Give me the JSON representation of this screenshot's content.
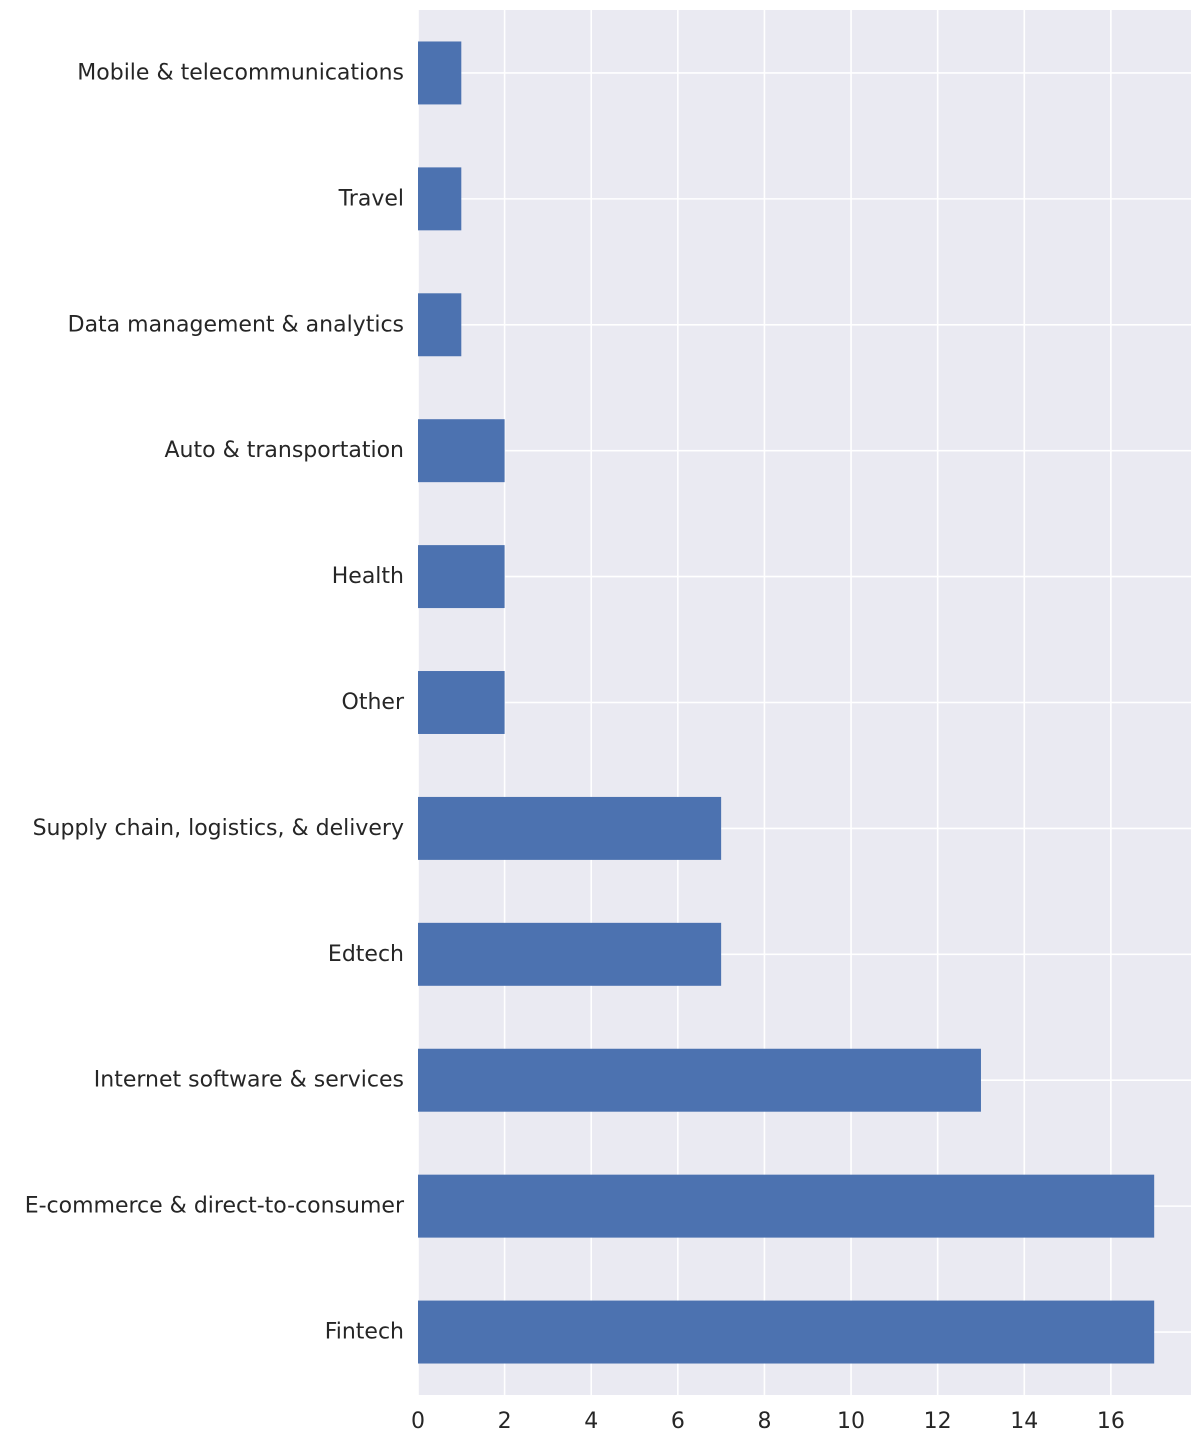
{
  "chart_data": {
    "type": "bar",
    "orientation": "horizontal",
    "categories": [
      "Mobile & telecommunications",
      "Travel",
      "Data management & analytics",
      "Auto & transportation",
      "Health",
      "Other",
      "Supply chain, logistics, & delivery",
      "Edtech",
      "Internet software & services",
      "E-commerce & direct-to-consumer",
      "Fintech"
    ],
    "values": [
      1,
      1,
      1,
      2,
      2,
      2,
      7,
      7,
      13,
      17,
      17
    ],
    "xticks": [
      0,
      2,
      4,
      6,
      8,
      10,
      12,
      14,
      16
    ],
    "xlim": [
      0,
      17.85
    ],
    "title": "",
    "xlabel": "",
    "ylabel": "",
    "grid": true,
    "style": "seaborn-darkgrid",
    "colors": {
      "bar": "#4c72b0",
      "plot_background": "#eaeaf2",
      "grid": "#ffffff",
      "text": "#262626"
    }
  }
}
